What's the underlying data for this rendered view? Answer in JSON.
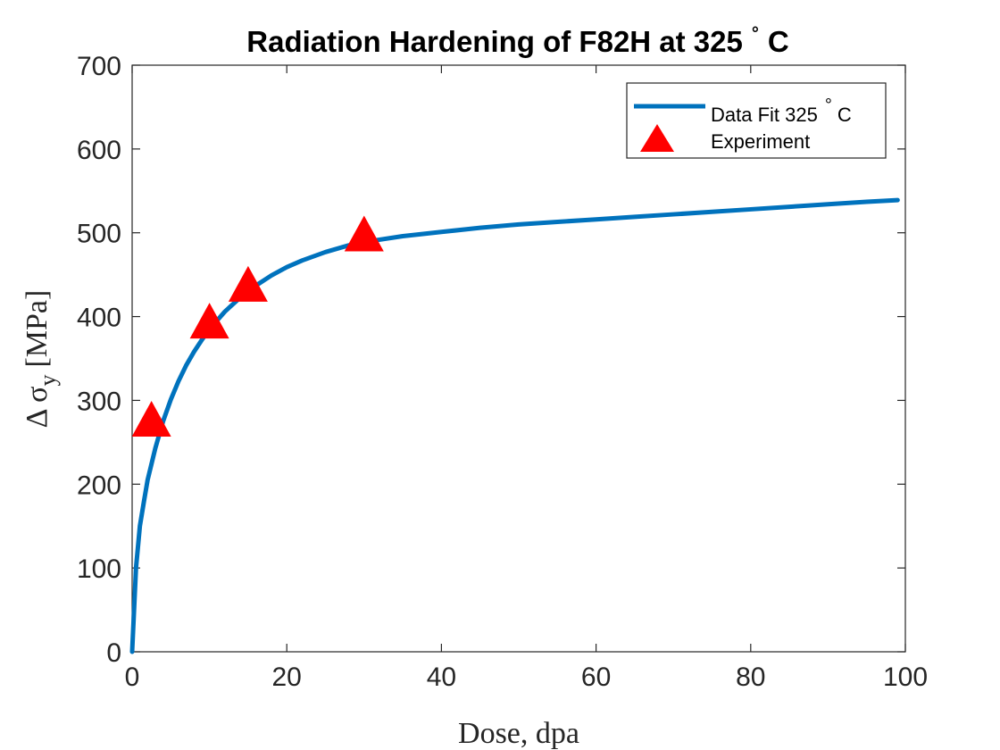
{
  "chart_data": {
    "type": "line",
    "title": "Radiation Hardening of F82H at 325",
    "title_degree": "°",
    "title_unit": "C",
    "xlabel": "Dose, dpa",
    "ylabel_prefix": "Δ σ",
    "ylabel_subscript": "y",
    "ylabel_unit": "[MPa]",
    "xlim": [
      0,
      100
    ],
    "ylim": [
      0,
      700
    ],
    "xticks": [
      0,
      20,
      40,
      60,
      80,
      100
    ],
    "yticks": [
      0,
      100,
      200,
      300,
      400,
      500,
      600,
      700
    ],
    "grid": false,
    "legend_position": "top-right",
    "series": [
      {
        "name": "Data Fit 325",
        "name_degree": "°",
        "name_unit": "C",
        "kind": "line",
        "color": "#0072BD",
        "x": [
          0,
          0.5,
          1,
          1.5,
          2,
          3,
          4,
          5,
          6,
          7,
          8,
          9,
          10,
          12,
          14,
          16,
          18,
          20,
          22,
          25,
          28,
          30,
          35,
          40,
          45,
          50,
          55,
          60,
          65,
          70,
          75,
          80,
          85,
          90,
          95,
          99
        ],
        "y": [
          0,
          100,
          150,
          178,
          205,
          243,
          275,
          301,
          323,
          342,
          358,
          372,
          385,
          406,
          423,
          437,
          449,
          459,
          467,
          477,
          485,
          489,
          496,
          501,
          506,
          510,
          513,
          516,
          519,
          522,
          525,
          528,
          531,
          534,
          537,
          539
        ]
      },
      {
        "name": "Experiment",
        "kind": "scatter",
        "marker": "triangle",
        "color": "#FF0000",
        "x": [
          2.5,
          10,
          15,
          30
        ],
        "y": [
          276,
          393,
          437,
          497
        ]
      }
    ]
  }
}
